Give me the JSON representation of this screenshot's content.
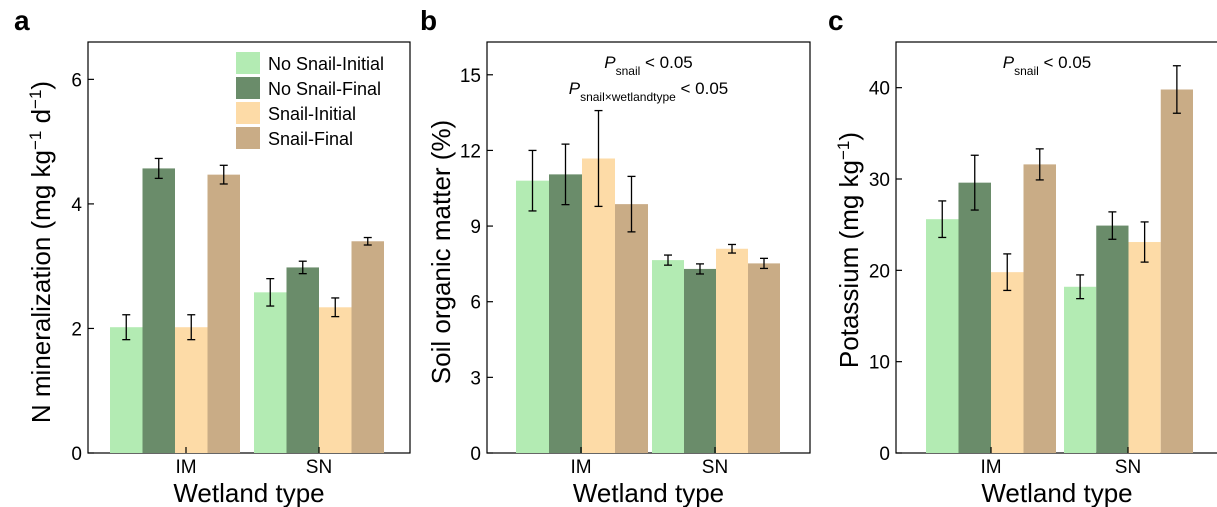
{
  "colors": {
    "No Snail-Initial": "#b3ebb3",
    "No Snail-Final": "#6a8c6a",
    "Snail-Initial": "#fddba7",
    "Snail-Final": "#c9ac86"
  },
  "legend": [
    "No Snail-Initial",
    "No Snail-Final",
    "Snail-Initial",
    "Snail-Final"
  ],
  "chart_data": [
    {
      "type": "bar",
      "panel": "a",
      "categories": [
        "IM",
        "SN"
      ],
      "xlabel": "Wetland type",
      "ylabel": "N mineralization (mg kg",
      "ylabel_units": [
        "−1",
        " d",
        "−1",
        ")"
      ],
      "ylim": [
        0,
        6.6
      ],
      "yticks": [
        0,
        2,
        4,
        6
      ],
      "legend_position": "top-right",
      "series": [
        {
          "name": "No Snail-Initial",
          "values": [
            2.02,
            2.58
          ],
          "errors": [
            0.2,
            0.22
          ]
        },
        {
          "name": "No Snail-Final",
          "values": [
            4.57,
            2.98
          ],
          "errors": [
            0.16,
            0.1
          ]
        },
        {
          "name": "Snail-Initial",
          "values": [
            2.02,
            2.34
          ],
          "errors": [
            0.2,
            0.15
          ]
        },
        {
          "name": "Snail-Final",
          "values": [
            4.47,
            3.4
          ],
          "errors": [
            0.15,
            0.06
          ]
        }
      ],
      "annotations": []
    },
    {
      "type": "bar",
      "panel": "b",
      "categories": [
        "IM",
        "SN"
      ],
      "xlabel": "Wetland type",
      "ylabel": "Soil organic matter (%)",
      "ylim": [
        0,
        16.3
      ],
      "yticks": [
        0,
        3,
        6,
        9,
        12,
        15
      ],
      "series": [
        {
          "name": "No Snail-Initial",
          "values": [
            10.8,
            7.65
          ],
          "errors": [
            1.2,
            0.2
          ]
        },
        {
          "name": "No Snail-Final",
          "values": [
            11.05,
            7.3
          ],
          "errors": [
            1.2,
            0.2
          ]
        },
        {
          "name": "Snail-Initial",
          "values": [
            11.68,
            8.1
          ],
          "errors": [
            1.9,
            0.17
          ]
        },
        {
          "name": "Snail-Final",
          "values": [
            9.87,
            7.52
          ],
          "errors": [
            1.1,
            0.2
          ]
        }
      ],
      "annotations": [
        {
          "p": "P",
          "sub": "snail",
          "rest": " < 0.05"
        },
        {
          "p": "P",
          "sub": "snail×wetlandtype",
          "rest": " < 0.05"
        }
      ]
    },
    {
      "type": "bar",
      "panel": "c",
      "categories": [
        "IM",
        "SN"
      ],
      "xlabel": "Wetland type",
      "ylabel": "Potassium (mg kg",
      "ylabel_units": [
        "−1",
        ")"
      ],
      "ylim": [
        0,
        45
      ],
      "yticks": [
        0,
        10,
        20,
        30,
        40
      ],
      "series": [
        {
          "name": "No Snail-Initial",
          "values": [
            25.6,
            18.2
          ],
          "errors": [
            2.0,
            1.3
          ]
        },
        {
          "name": "No Snail-Final",
          "values": [
            29.6,
            24.9
          ],
          "errors": [
            3.0,
            1.5
          ]
        },
        {
          "name": "Snail-Initial",
          "values": [
            19.8,
            23.1
          ],
          "errors": [
            2.0,
            2.2
          ]
        },
        {
          "name": "Snail-Final",
          "values": [
            31.6,
            39.8
          ],
          "errors": [
            1.7,
            2.6
          ]
        }
      ],
      "annotations": [
        {
          "p": "P",
          "sub": "snail",
          "rest": " < 0.05"
        }
      ]
    }
  ]
}
